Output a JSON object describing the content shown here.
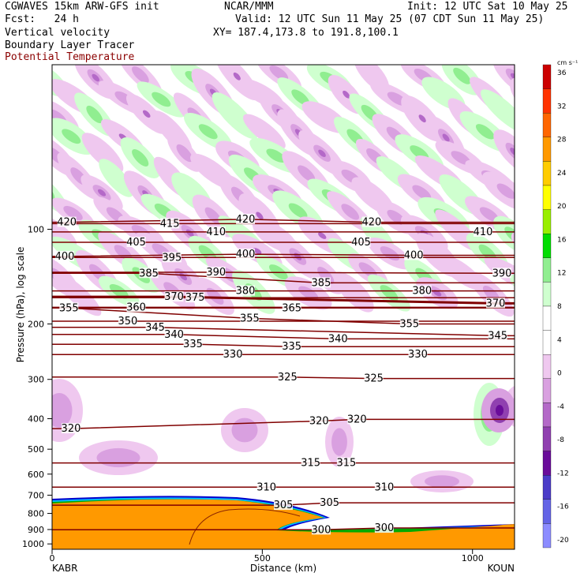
{
  "header": {
    "line1_left": "CGWAVES 15km ARW-GFS init",
    "line1_mid": "NCAR/MMM",
    "line1_right": "Init: 12 UTC Sat 10 May 25",
    "line2_left": "Fcst:   24 h",
    "line2_right": "Valid: 12 UTC Sun 11 May 25 (07 CDT Sun 11 May 25)",
    "line3_left": "Vertical velocity",
    "line3_right": "XY= 187.4,173.8 to 191.8,100.1",
    "line4_left": "Boundary Layer Tracer",
    "line5_left": "Potential Temperature"
  },
  "colors": {
    "contour": "#800000",
    "upward": [
      "#cfffcf",
      "#90ee90",
      "#00dd00",
      "#99ee00",
      "#ffff00",
      "#ffcc00",
      "#ff9900",
      "#ff6600",
      "#ff3300",
      "#cc0000"
    ],
    "downward": [
      "#efc8ef",
      "#d9a0e0",
      "#b469c8",
      "#9040b0",
      "#6a0c9a",
      "#4b3cc8",
      "#6464e6",
      "#8c8cff"
    ],
    "terrain_fill": "#ff9900",
    "tracer_edges": [
      "#00aa00",
      "#00bbff",
      "#0000cc"
    ]
  },
  "chart_data": {
    "type": "cross-section",
    "title": "Vertical velocity",
    "xlabel": "Distance (km)",
    "ylabel": "Pressure (hPa), log scale",
    "x_ticks": [
      0,
      500,
      1000
    ],
    "x_range": [
      0,
      1100
    ],
    "y_ticks": [
      100,
      200,
      300,
      400,
      500,
      600,
      700,
      800,
      900,
      1000
    ],
    "y_range_hpa": [
      30,
      1040
    ],
    "y_scale": "log",
    "endpoints": {
      "left": "KABR",
      "right": "KOUN"
    },
    "colorbar": {
      "unit": "cm s⁻¹",
      "levels": [
        -20,
        -16,
        -12,
        -8,
        -4,
        0,
        4,
        8,
        12,
        16,
        20,
        24,
        28,
        32,
        36
      ]
    },
    "potential_temperature_labels": [
      {
        "x": 35,
        "p": 95,
        "value": "420"
      },
      {
        "x": 460,
        "p": 93,
        "value": "420"
      },
      {
        "x": 760,
        "p": 95,
        "value": "420"
      },
      {
        "x": 280,
        "p": 96,
        "value": "415"
      },
      {
        "x": 390,
        "p": 102,
        "value": "410"
      },
      {
        "x": 1025,
        "p": 102,
        "value": "410"
      },
      {
        "x": 200,
        "p": 110,
        "value": "405"
      },
      {
        "x": 735,
        "p": 110,
        "value": "405"
      },
      {
        "x": 30,
        "p": 122,
        "value": "400"
      },
      {
        "x": 460,
        "p": 120,
        "value": "400"
      },
      {
        "x": 860,
        "p": 121,
        "value": "400"
      },
      {
        "x": 285,
        "p": 123,
        "value": "395"
      },
      {
        "x": 390,
        "p": 137,
        "value": "390"
      },
      {
        "x": 1070,
        "p": 138,
        "value": "390"
      },
      {
        "x": 230,
        "p": 138,
        "value": "385"
      },
      {
        "x": 640,
        "p": 148,
        "value": "385"
      },
      {
        "x": 460,
        "p": 157,
        "value": "380"
      },
      {
        "x": 880,
        "p": 157,
        "value": "380"
      },
      {
        "x": 340,
        "p": 165,
        "value": "375"
      },
      {
        "x": 290,
        "p": 164,
        "value": "370"
      },
      {
        "x": 1055,
        "p": 172,
        "value": "370"
      },
      {
        "x": 570,
        "p": 178,
        "value": "365"
      },
      {
        "x": 200,
        "p": 177,
        "value": "360"
      },
      {
        "x": 40,
        "p": 178,
        "value": "355"
      },
      {
        "x": 470,
        "p": 192,
        "value": "355"
      },
      {
        "x": 850,
        "p": 200,
        "value": "355"
      },
      {
        "x": 180,
        "p": 196,
        "value": "350"
      },
      {
        "x": 245,
        "p": 205,
        "value": "345"
      },
      {
        "x": 1060,
        "p": 218,
        "value": "345"
      },
      {
        "x": 290,
        "p": 216,
        "value": "340"
      },
      {
        "x": 680,
        "p": 223,
        "value": "340"
      },
      {
        "x": 335,
        "p": 232,
        "value": "335"
      },
      {
        "x": 570,
        "p": 236,
        "value": "335"
      },
      {
        "x": 430,
        "p": 250,
        "value": "330"
      },
      {
        "x": 870,
        "p": 250,
        "value": "330"
      },
      {
        "x": 560,
        "p": 295,
        "value": "325"
      },
      {
        "x": 765,
        "p": 298,
        "value": "325"
      },
      {
        "x": 45,
        "p": 430,
        "value": "320"
      },
      {
        "x": 635,
        "p": 407,
        "value": "320"
      },
      {
        "x": 725,
        "p": 402,
        "value": "320"
      },
      {
        "x": 615,
        "p": 553,
        "value": "315"
      },
      {
        "x": 700,
        "p": 553,
        "value": "315"
      },
      {
        "x": 510,
        "p": 660,
        "value": "310"
      },
      {
        "x": 790,
        "p": 660,
        "value": "310"
      },
      {
        "x": 550,
        "p": 753,
        "value": "305"
      },
      {
        "x": 660,
        "p": 740,
        "value": "305"
      },
      {
        "x": 640,
        "p": 902,
        "value": "300"
      },
      {
        "x": 790,
        "p": 890,
        "value": "300"
      }
    ]
  }
}
